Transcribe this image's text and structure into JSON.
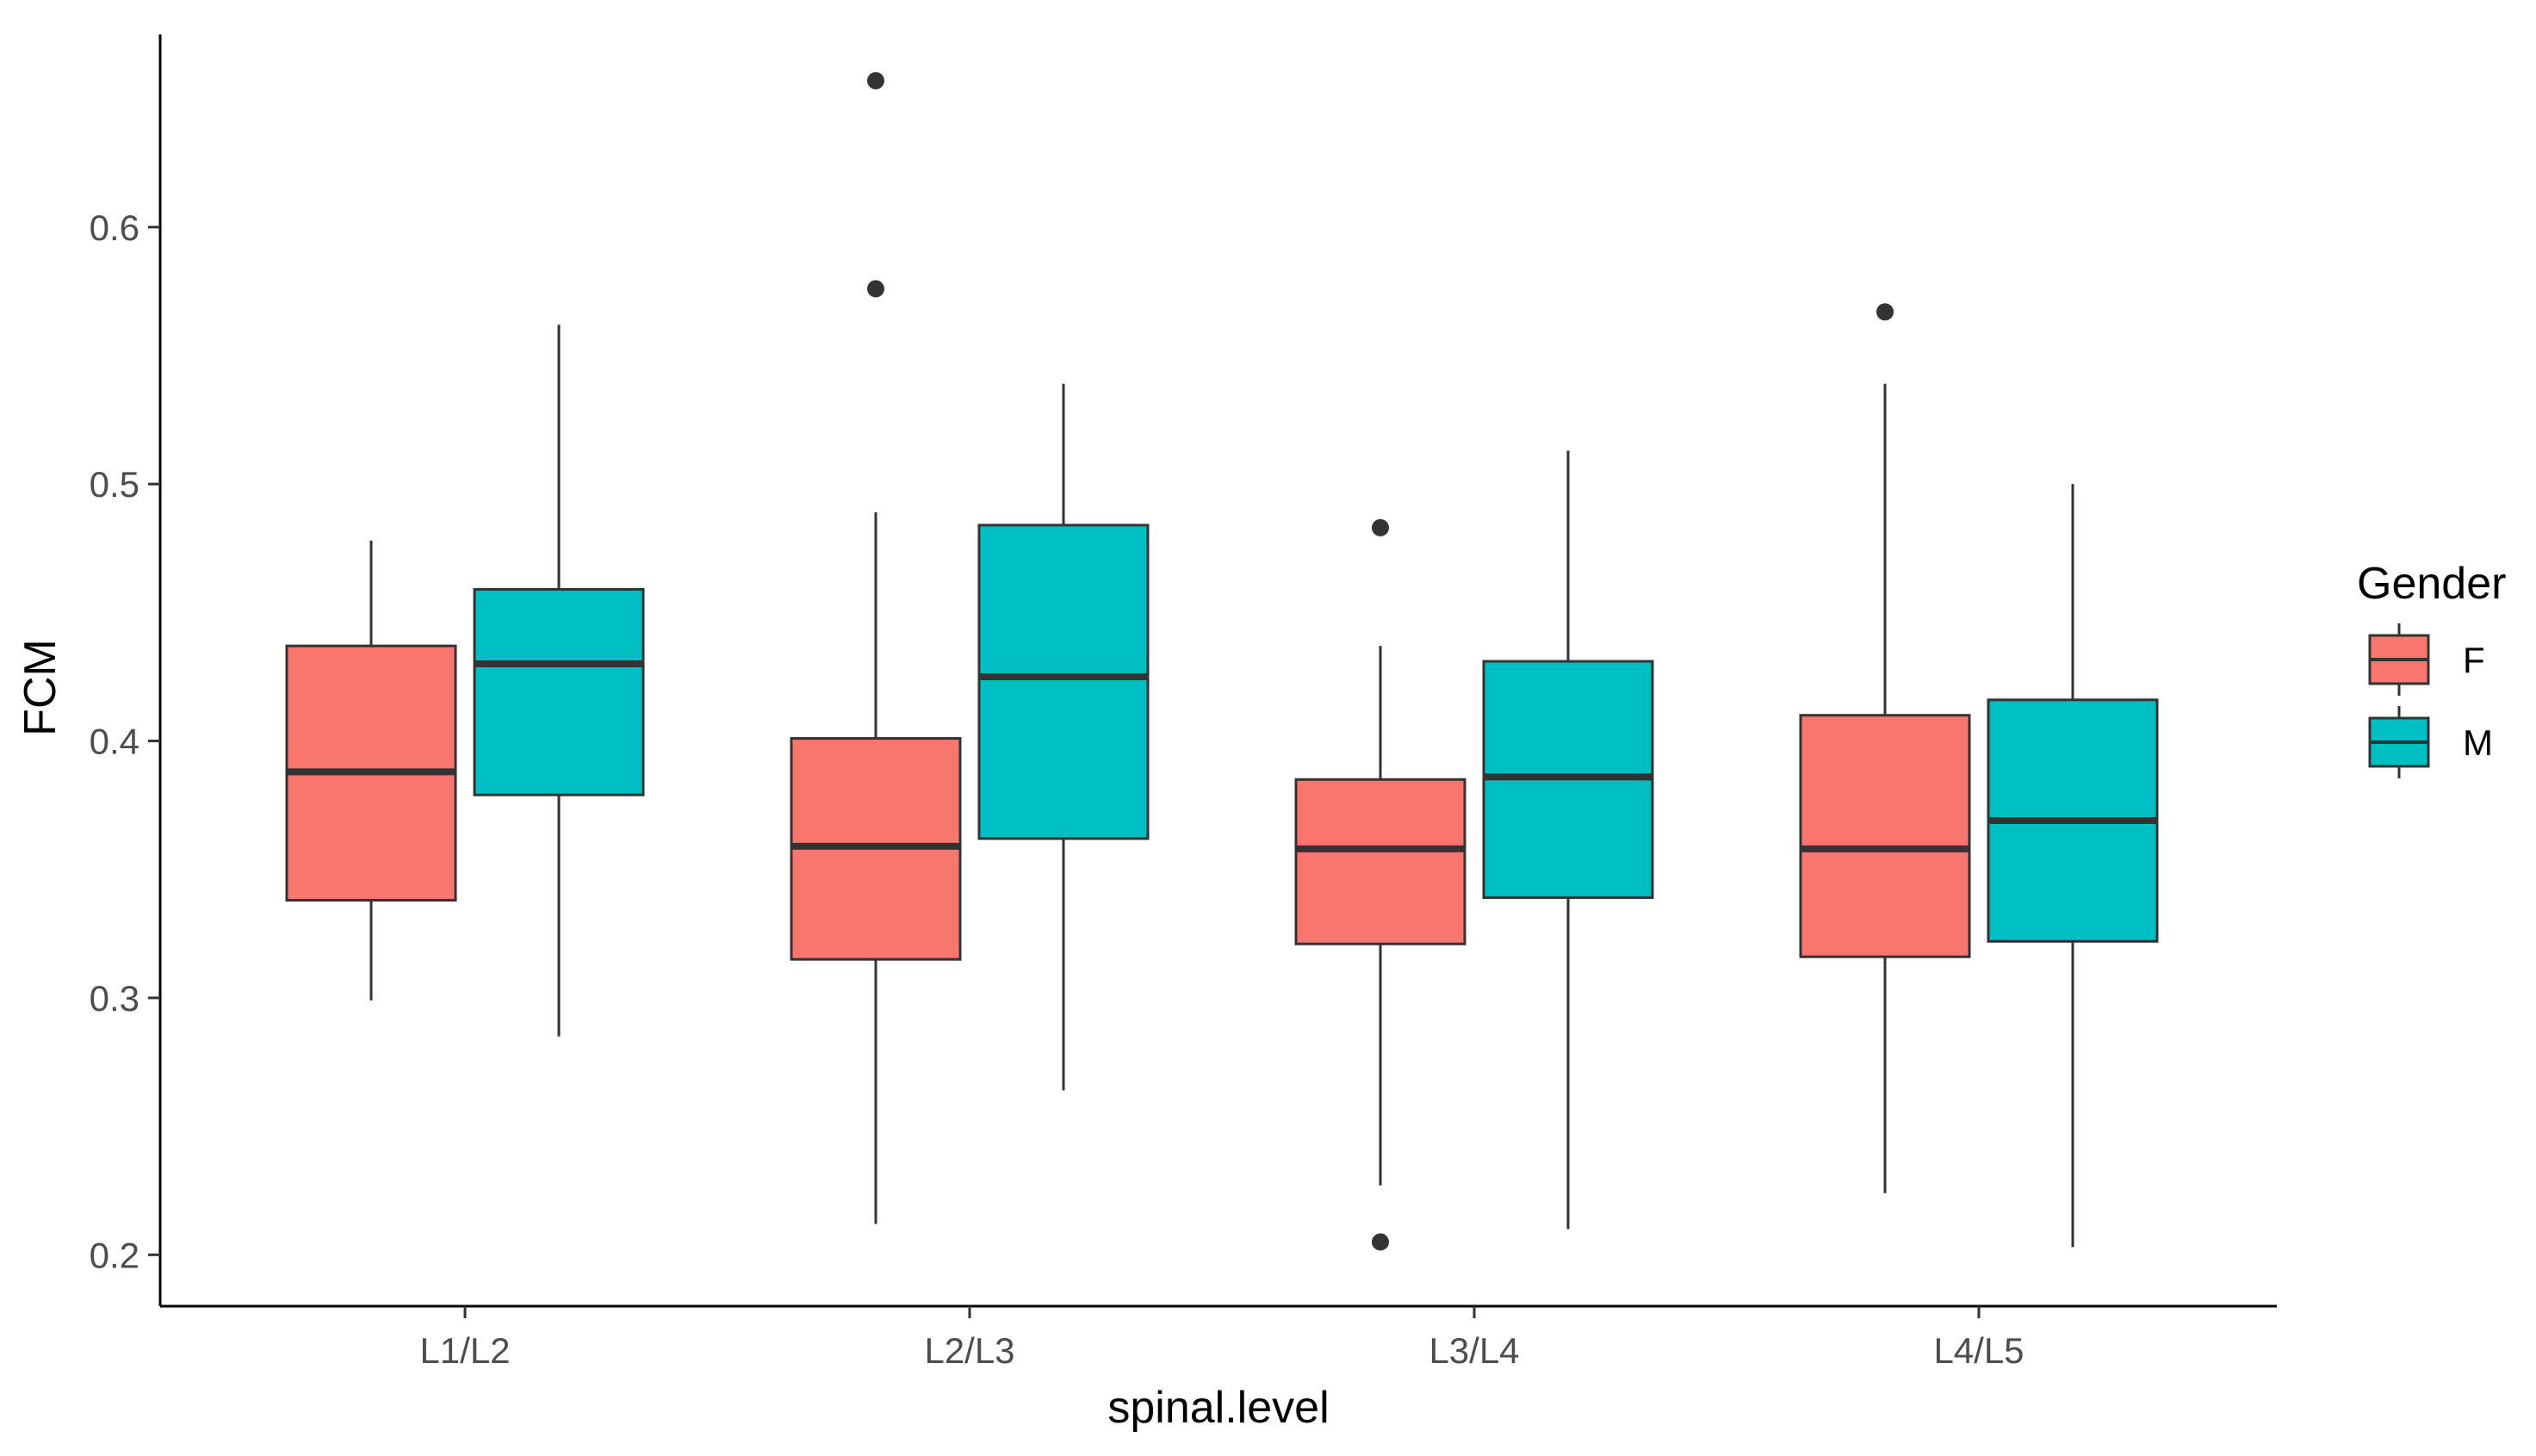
{
  "chart_data": {
    "type": "boxplot",
    "xlabel": "spinal.level",
    "ylabel": "FCM",
    "categories": [
      "L1/L2",
      "L2/L3",
      "L3/L4",
      "L4/L5"
    ],
    "ylim": [
      0.18,
      0.675
    ],
    "yticks": [
      0.2,
      0.3,
      0.4,
      0.5,
      0.6
    ],
    "ytick_labels": [
      "0.2",
      "0.3",
      "0.4",
      "0.5",
      "0.6"
    ],
    "grid": false,
    "legend": {
      "title": "Gender",
      "position": "right",
      "entries": [
        {
          "label": "F",
          "color": "#F8766D"
        },
        {
          "label": "M",
          "color": "#00BFC4"
        }
      ]
    },
    "series": [
      {
        "name": "F",
        "color": "#F8766D",
        "boxes": [
          {
            "category": "L1/L2",
            "whisker_low": 0.299,
            "q1": 0.338,
            "median": 0.388,
            "q3": 0.437,
            "whisker_high": 0.478,
            "outliers": []
          },
          {
            "category": "L2/L3",
            "whisker_low": 0.212,
            "q1": 0.315,
            "median": 0.359,
            "q3": 0.401,
            "whisker_high": 0.489,
            "outliers": [
              0.576,
              0.657
            ]
          },
          {
            "category": "L3/L4",
            "whisker_low": 0.227,
            "q1": 0.321,
            "median": 0.358,
            "q3": 0.385,
            "whisker_high": 0.437,
            "outliers": [
              0.205,
              0.483
            ]
          },
          {
            "category": "L4/L5",
            "whisker_low": 0.224,
            "q1": 0.316,
            "median": 0.358,
            "q3": 0.41,
            "whisker_high": 0.539,
            "outliers": [
              0.567
            ]
          }
        ]
      },
      {
        "name": "M",
        "color": "#00BFC4",
        "boxes": [
          {
            "category": "L1/L2",
            "whisker_low": 0.285,
            "q1": 0.379,
            "median": 0.43,
            "q3": 0.459,
            "whisker_high": 0.562,
            "outliers": []
          },
          {
            "category": "L2/L3",
            "whisker_low": 0.264,
            "q1": 0.362,
            "median": 0.425,
            "q3": 0.484,
            "whisker_high": 0.539,
            "outliers": []
          },
          {
            "category": "L3/L4",
            "whisker_low": 0.21,
            "q1": 0.339,
            "median": 0.386,
            "q3": 0.431,
            "whisker_high": 0.513,
            "outliers": []
          },
          {
            "category": "L4/L5",
            "whisker_low": 0.203,
            "q1": 0.322,
            "median": 0.369,
            "q3": 0.416,
            "whisker_high": 0.5,
            "outliers": []
          }
        ]
      }
    ]
  }
}
